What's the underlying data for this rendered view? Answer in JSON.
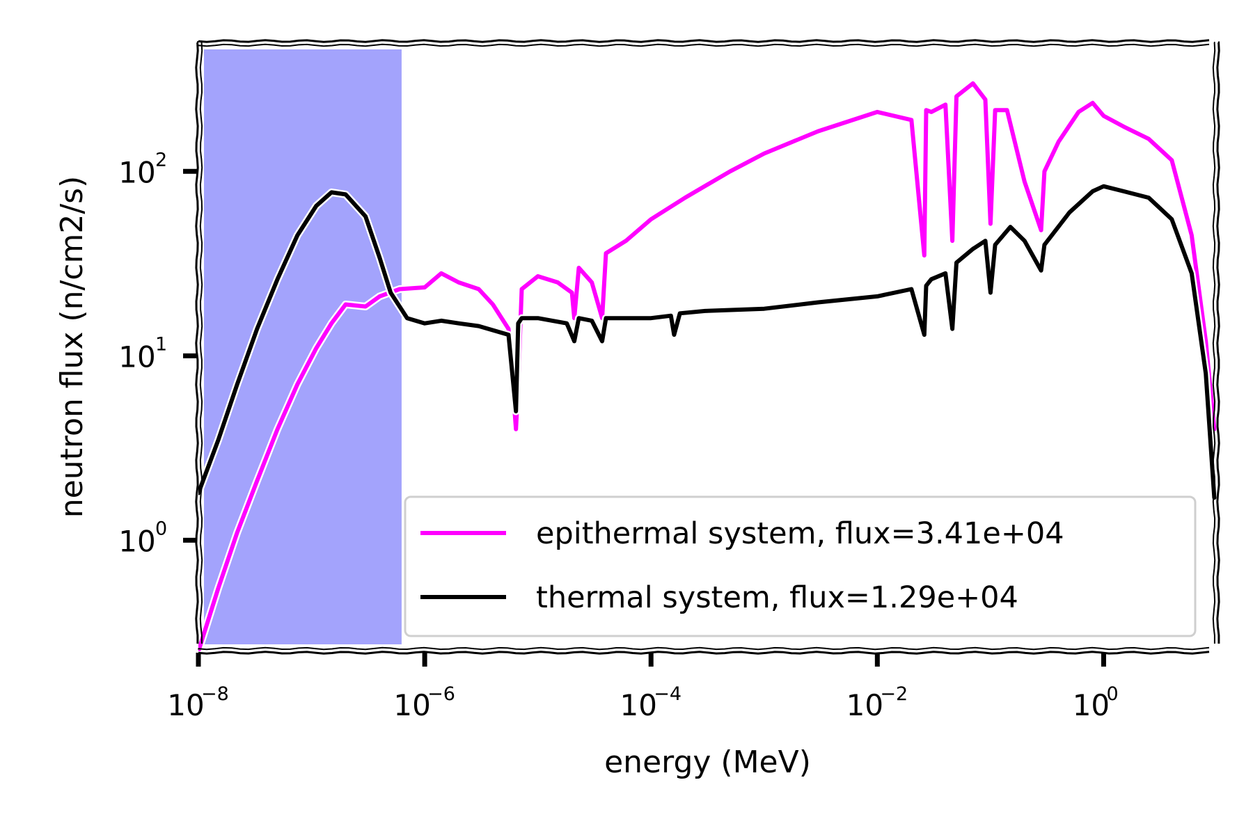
{
  "chart_data": {
    "type": "line",
    "title": "",
    "xlabel": "energy (MeV)",
    "ylabel": "neutron flux (n/cm2/s)",
    "xscale": "log",
    "yscale": "log",
    "xlim": [
      1e-08,
      10
    ],
    "ylim": [
      0.25,
      500
    ],
    "grid": false,
    "legend_position": "lower-right",
    "shaded_region": {
      "x": [
        1e-08,
        6.25e-07
      ],
      "color": "#a3a3fc"
    },
    "x_ticks": [
      {
        "base": "10",
        "exp": "−8",
        "value": 1e-08
      },
      {
        "base": "10",
        "exp": "−6",
        "value": 1e-06
      },
      {
        "base": "10",
        "exp": "−4",
        "value": 0.0001
      },
      {
        "base": "10",
        "exp": "−2",
        "value": 0.01
      },
      {
        "base": "10",
        "exp": "0",
        "value": 1
      }
    ],
    "y_ticks": [
      {
        "base": "10",
        "exp": "2",
        "value": 100
      },
      {
        "base": "10",
        "exp": "1",
        "value": 10
      },
      {
        "base": "10",
        "exp": "0",
        "value": 1
      }
    ],
    "series": [
      {
        "name": "epithermal system, flux=3.41e+04",
        "color": "#ff00ff",
        "x": [
          1e-08,
          1.5e-08,
          2.2e-08,
          3.3e-08,
          5e-08,
          7.5e-08,
          1.1e-07,
          1.5e-07,
          2e-07,
          3e-07,
          4e-07,
          6e-07,
          1e-06,
          1.4e-06,
          2e-06,
          3e-06,
          4e-06,
          5.5e-06,
          6.4e-06,
          6.7e-06,
          7.2e-06,
          1e-05,
          1.5e-05,
          2e-05,
          2.1e-05,
          2.3e-05,
          3e-05,
          3.7e-05,
          4e-05,
          6e-05,
          0.0001,
          0.0002,
          0.0005,
          0.001,
          0.003,
          0.01,
          0.02,
          0.026,
          0.027,
          0.03,
          0.04,
          0.046,
          0.05,
          0.07,
          0.09,
          0.1,
          0.11,
          0.14,
          0.2,
          0.28,
          0.3,
          0.4,
          0.6,
          0.8,
          1.0,
          1.5,
          2.5,
          4,
          6,
          8,
          9.5
        ],
        "y": [
          0.25,
          0.55,
          1.1,
          2.1,
          4.0,
          7.0,
          11.0,
          15.0,
          19.0,
          18.5,
          21.0,
          23.0,
          23.5,
          28.0,
          25.0,
          23.0,
          19.0,
          14.0,
          4.0,
          7.0,
          23.0,
          27.0,
          25.0,
          22.0,
          16.0,
          30.0,
          25.0,
          16.0,
          36.0,
          42.0,
          55.0,
          72.0,
          100.0,
          125.0,
          165.0,
          210.0,
          190.0,
          35.0,
          215.0,
          210.0,
          230.0,
          42.0,
          255.0,
          300.0,
          245.0,
          52.0,
          215.0,
          215.0,
          88.0,
          48.0,
          100.0,
          145.0,
          210.0,
          235.0,
          200.0,
          175.0,
          150.0,
          115.0,
          45.0,
          12.0,
          4.0
        ]
      },
      {
        "name": "thermal system, flux=1.29e+04",
        "color": "#000000",
        "x": [
          1e-08,
          1.5e-08,
          2.2e-08,
          3.3e-08,
          5e-08,
          7.5e-08,
          1.1e-07,
          1.5e-07,
          2e-07,
          3e-07,
          4e-07,
          5e-07,
          7e-07,
          1e-06,
          1.4e-06,
          2e-06,
          3e-06,
          5.5e-06,
          6.4e-06,
          6.7e-06,
          7.2e-06,
          1e-05,
          1.8e-05,
          2.1e-05,
          2.3e-05,
          3e-05,
          3.7e-05,
          4e-05,
          6e-05,
          0.0001,
          0.00015,
          0.00016,
          0.00018,
          0.0003,
          0.001,
          0.003,
          0.01,
          0.02,
          0.026,
          0.027,
          0.03,
          0.04,
          0.046,
          0.05,
          0.07,
          0.09,
          0.1,
          0.11,
          0.15,
          0.2,
          0.28,
          0.3,
          0.5,
          0.8,
          1.0,
          1.5,
          2.5,
          4,
          6,
          8,
          9.5
        ],
        "y": [
          1.8,
          3.5,
          7.0,
          14.0,
          26.0,
          45.0,
          65.0,
          77.0,
          75.0,
          57.0,
          34.0,
          22.0,
          16.0,
          15.0,
          15.5,
          15.0,
          14.5,
          13.0,
          5.0,
          15.0,
          16.0,
          16.0,
          15.0,
          12.0,
          16.0,
          15.5,
          12.0,
          16.0,
          16.0,
          16.0,
          16.5,
          13.0,
          17.0,
          17.5,
          18.0,
          19.5,
          21.0,
          23.0,
          13.0,
          24.0,
          26.0,
          28.0,
          14.0,
          32.0,
          38.0,
          42.0,
          22.0,
          40.0,
          50.0,
          42.0,
          29.0,
          40.0,
          60.0,
          78.0,
          83.0,
          78.0,
          72.0,
          55.0,
          28.0,
          8.0,
          1.7
        ]
      }
    ]
  }
}
